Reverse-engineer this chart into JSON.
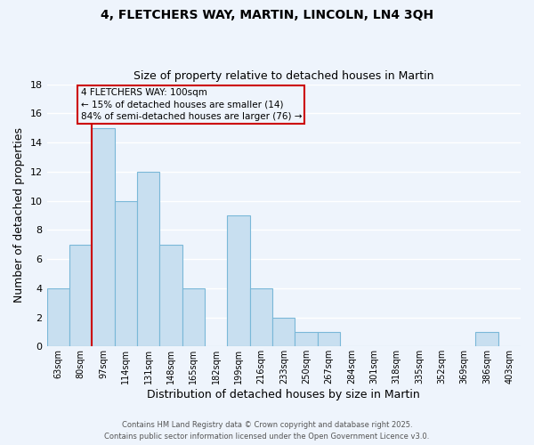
{
  "title": "4, FLETCHERS WAY, MARTIN, LINCOLN, LN4 3QH",
  "subtitle": "Size of property relative to detached houses in Martin",
  "xlabel": "Distribution of detached houses by size in Martin",
  "ylabel": "Number of detached properties",
  "categories": [
    "63sqm",
    "80sqm",
    "97sqm",
    "114sqm",
    "131sqm",
    "148sqm",
    "165sqm",
    "182sqm",
    "199sqm",
    "216sqm",
    "233sqm",
    "250sqm",
    "267sqm",
    "284sqm",
    "301sqm",
    "318sqm",
    "335sqm",
    "352sqm",
    "369sqm",
    "386sqm",
    "403sqm"
  ],
  "values": [
    4,
    7,
    15,
    10,
    12,
    7,
    4,
    0,
    9,
    4,
    2,
    1,
    1,
    0,
    0,
    0,
    0,
    0,
    0,
    1,
    0
  ],
  "bar_color": "#c8dff0",
  "bar_edgecolor": "#7ab8d8",
  "background_color": "#eef4fc",
  "grid_color": "#ffffff",
  "vline_x_index": 2,
  "vline_color": "#cc0000",
  "annotation_text": "4 FLETCHERS WAY: 100sqm\n← 15% of detached houses are smaller (14)\n84% of semi-detached houses are larger (76) →",
  "annotation_box_edgecolor": "#cc0000",
  "annotation_box_facecolor": "#eef4fc",
  "ylim": [
    0,
    18
  ],
  "yticks": [
    0,
    2,
    4,
    6,
    8,
    10,
    12,
    14,
    16,
    18
  ],
  "footer1": "Contains HM Land Registry data © Crown copyright and database right 2025.",
  "footer2": "Contains public sector information licensed under the Open Government Licence v3.0."
}
